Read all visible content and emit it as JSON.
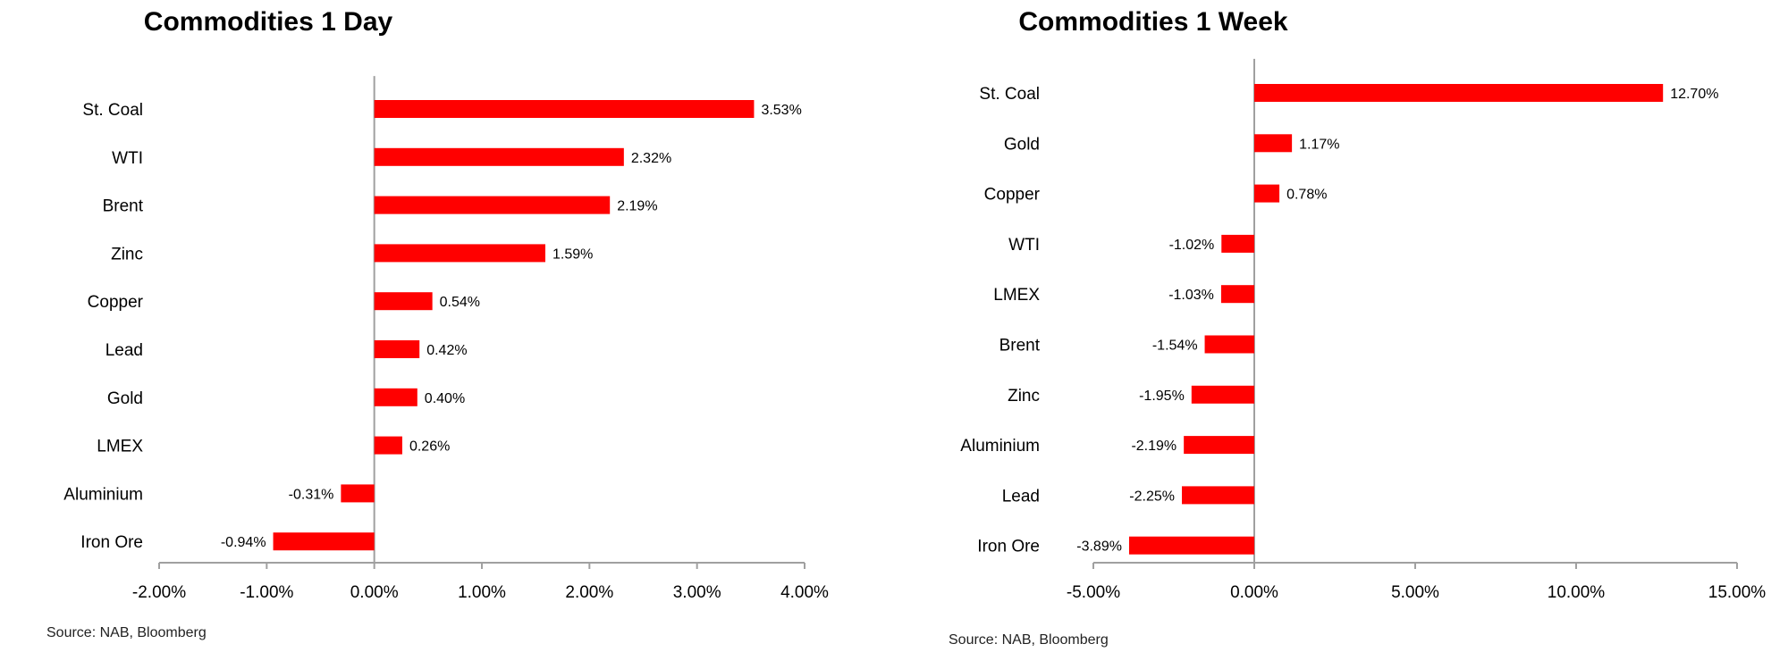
{
  "chart_data": [
    {
      "type": "bar",
      "orientation": "horizontal",
      "title": "Commodities 1 Day",
      "source": "Source: NAB, Bloomberg",
      "categories": [
        "St. Coal",
        "WTI",
        "Brent",
        "Zinc",
        "Copper",
        "Lead",
        "Gold",
        "LMEX",
        "Aluminium",
        "Iron Ore"
      ],
      "values": [
        3.53,
        2.32,
        2.19,
        1.59,
        0.54,
        0.42,
        0.4,
        0.26,
        -0.31,
        -0.94
      ],
      "data_labels": [
        "3.53%",
        "2.32%",
        "2.19%",
        "1.59%",
        "0.54%",
        "0.42%",
        "0.40%",
        "0.26%",
        "-0.31%",
        "-0.94%"
      ],
      "xlim": [
        -2,
        4
      ],
      "x_ticks": [
        -2,
        -1,
        0,
        1,
        2,
        3,
        4
      ],
      "x_tick_labels": [
        "-2.00%",
        "-1.00%",
        "0.00%",
        "1.00%",
        "2.00%",
        "3.00%",
        "4.00%"
      ],
      "bar_color": "#ff0000",
      "grid": false,
      "legend": "none"
    },
    {
      "type": "bar",
      "orientation": "horizontal",
      "title": "Commodities 1 Week",
      "source": "Source: NAB, Bloomberg",
      "categories": [
        "St. Coal",
        "Gold",
        "Copper",
        "WTI",
        "LMEX",
        "Brent",
        "Zinc",
        "Aluminium",
        "Lead",
        "Iron Ore"
      ],
      "values": [
        12.7,
        1.17,
        0.78,
        -1.02,
        -1.03,
        -1.54,
        -1.95,
        -2.19,
        -2.25,
        -3.89
      ],
      "data_labels": [
        "12.70%",
        "1.17%",
        "0.78%",
        "-1.02%",
        "-1.03%",
        "-1.54%",
        "-1.95%",
        "-2.19%",
        "-2.25%",
        "-3.89%"
      ],
      "xlim": [
        -5,
        15
      ],
      "x_ticks": [
        -5,
        0,
        5,
        10,
        15
      ],
      "x_tick_labels": [
        "-5.00%",
        "0.00%",
        "5.00%",
        "10.00%",
        "15.00%"
      ],
      "bar_color": "#ff0000",
      "grid": false,
      "legend": "none"
    }
  ]
}
